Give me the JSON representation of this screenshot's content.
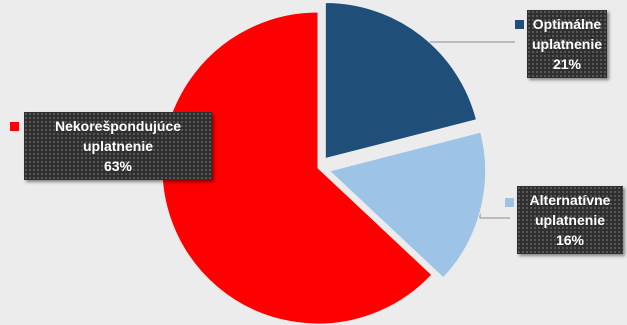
{
  "chart_data": {
    "type": "pie",
    "slices": [
      {
        "id": "optimalne",
        "label_lines": [
          "Optimálne",
          "uplatnenie"
        ],
        "value": 21,
        "value_text": "21%",
        "color": "#1f4e79",
        "exploded": true
      },
      {
        "id": "alternativne",
        "label_lines": [
          "Alternatívne",
          "uplatnenie"
        ],
        "value": 16,
        "value_text": "16%",
        "color": "#9dc3e6",
        "exploded": true
      },
      {
        "id": "nekorespondujuce",
        "label_lines": [
          "Nekorešpondujúce",
          "uplatnenie"
        ],
        "value": 63,
        "value_text": "63%",
        "color": "#ff0000",
        "exploded": false
      }
    ],
    "legend": "inline labels"
  }
}
